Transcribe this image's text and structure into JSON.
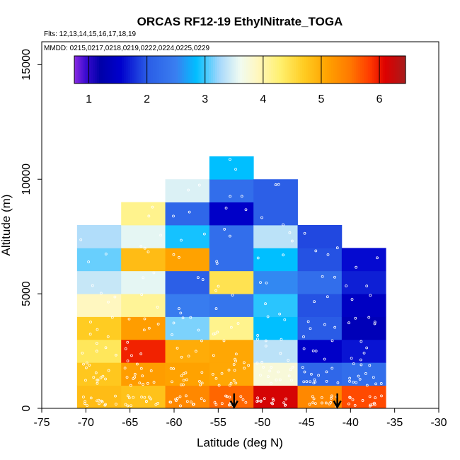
{
  "chart_data": {
    "type": "heatmap",
    "title": "ORCAS RF12-19 EthylNitrate_TOGA",
    "flights_note": "Flts: 12,13,14,15,16,17,18,19",
    "dates_note": "MMDD: 0215,0217,0218,0219,0222,0224,0225,0229",
    "xlabel": "Latitude (deg N)",
    "ylabel": "Altitude (m)",
    "xlim": [
      -75,
      -30
    ],
    "ylim": [
      0,
      16000
    ],
    "x_ticks": [
      -75,
      -70,
      -65,
      -60,
      -55,
      -50,
      -45,
      -40,
      -35,
      -30
    ],
    "y_ticks": [
      0,
      5000,
      10000,
      15000
    ],
    "x_tick_labels": [
      "-75",
      "-70",
      "-65",
      "-60",
      "-55",
      "-50",
      "-45",
      "-40",
      "-35",
      "-30"
    ],
    "y_tick_labels": [
      "0",
      "5000",
      "10000",
      "15000"
    ],
    "colorbar": {
      "range": [
        0.75,
        6.45
      ],
      "ticks": [
        1,
        2,
        3,
        4,
        5,
        6
      ],
      "tick_labels": [
        "1",
        "2",
        "3",
        "4",
        "5",
        "6"
      ]
    },
    "bin_width_deg": 5,
    "bin_height_m": 1000,
    "columns": [
      {
        "lat_min": -71,
        "cells": [
          4.85,
          4.75,
          4.4,
          4.7,
          3.9,
          3.4,
          3.1,
          3.3
        ]
      },
      {
        "lat_min": -66,
        "cells": [
          4.8,
          5.15,
          5.95,
          5.15,
          4.1,
          3.55,
          4.85,
          3.55,
          4.15
        ]
      },
      {
        "lat_min": -61,
        "cells": [
          5.35,
          5.1,
          5.0,
          3.15,
          2.45,
          2.05,
          5.1,
          2.9,
          2.15,
          3.5
        ]
      },
      {
        "lat_min": -56,
        "cells": [
          5.6,
          5.05,
          5.05,
          4.15,
          2.35,
          4.45,
          2.25,
          2.25,
          1.5,
          2.25,
          2.85
        ]
      },
      {
        "lat_min": -51,
        "cells": [
          6.15,
          3.75,
          3.35,
          2.85,
          2.95,
          2.55,
          2.85,
          3.35,
          2.05,
          2.05
        ]
      },
      {
        "lat_min": -46,
        "cells": [
          5.35,
          2.15,
          1.5,
          2.0,
          1.95,
          2.25,
          1.95,
          1.9
        ]
      },
      {
        "lat_min": -41,
        "cells": [
          5.75,
          2.25,
          1.65,
          1.35,
          1.45,
          1.7,
          1.6
        ]
      }
    ],
    "arrows_lat": [
      -53.2,
      -41.5
    ]
  }
}
